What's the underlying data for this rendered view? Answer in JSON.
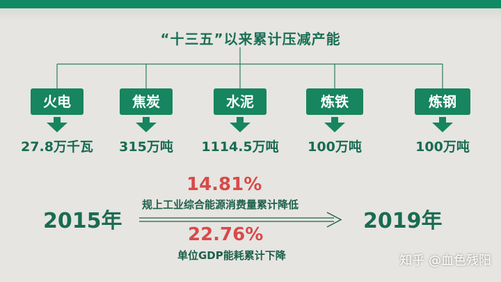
{
  "title": "“十三五”以来累计压减产能",
  "items": [
    {
      "name": "火电",
      "value": "27.8万千瓦"
    },
    {
      "name": "焦炭",
      "value": "315万吨"
    },
    {
      "name": "水泥",
      "value": "1114.5万吨"
    },
    {
      "name": "炼铁",
      "value": "100万吨"
    },
    {
      "name": "炼钢",
      "value": "100万吨"
    }
  ],
  "comparison": {
    "start_year": "2015年",
    "end_year": "2019年",
    "energy_pct": "14.81%",
    "energy_label": "规上工业综合能源消费量累计降低",
    "gdp_pct": "22.76%",
    "gdp_label": "单位GDP能耗累计下降"
  },
  "watermark": "知乎 @血色残阳",
  "colors": {
    "brand_green": "#17855f",
    "accent_red": "#d84a4a"
  }
}
